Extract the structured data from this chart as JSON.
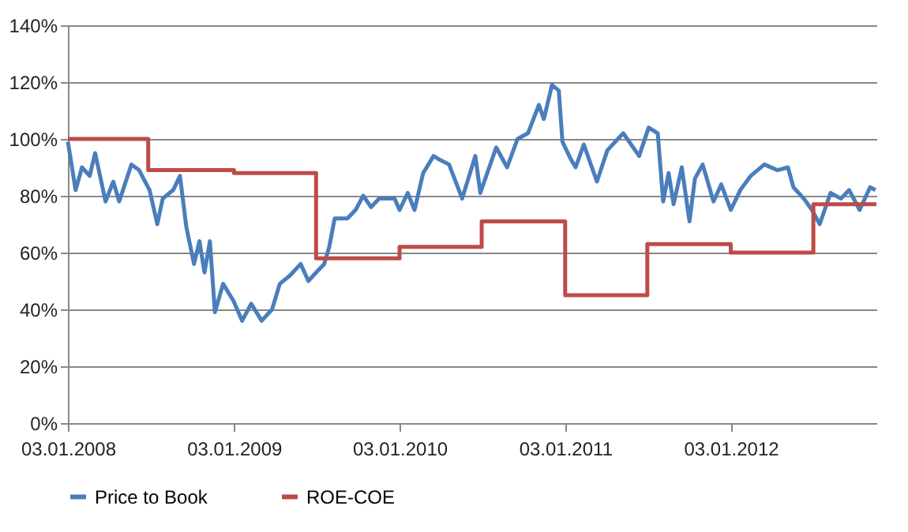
{
  "chart_data": {
    "type": "line",
    "series": [
      {
        "name": "Price to Book",
        "color": "#4a7ebb",
        "type": "line",
        "x": [
          "2008-01-03",
          "2008-01-20",
          "2008-02-03",
          "2008-02-20",
          "2008-03-03",
          "2008-03-26",
          "2008-04-12",
          "2008-04-25",
          "2008-05-22",
          "2008-06-08",
          "2008-07-01",
          "2008-07-18",
          "2008-07-30",
          "2008-08-22",
          "2008-09-06",
          "2008-09-20",
          "2008-10-07",
          "2008-10-19",
          "2008-10-30",
          "2008-11-11",
          "2008-11-22",
          "2008-12-10",
          "2009-01-02",
          "2009-01-21",
          "2009-02-10",
          "2009-03-05",
          "2009-03-28",
          "2009-04-14",
          "2009-05-07",
          "2009-05-30",
          "2009-06-16",
          "2009-07-03",
          "2009-07-21",
          "2009-08-01",
          "2009-08-13",
          "2009-09-10",
          "2009-09-28",
          "2009-10-15",
          "2009-11-01",
          "2009-11-19",
          "2009-12-23",
          "2010-01-03",
          "2010-01-21",
          "2010-02-05",
          "2010-02-24",
          "2010-03-19",
          "2010-03-29",
          "2010-04-22",
          "2010-05-09",
          "2010-05-21",
          "2010-06-19",
          "2010-06-30",
          "2010-08-04",
          "2010-08-28",
          "2010-09-20",
          "2010-10-13",
          "2010-11-06",
          "2010-11-17",
          "2010-12-05",
          "2010-12-20",
          "2010-12-28",
          "2011-01-15",
          "2011-01-26",
          "2011-02-13",
          "2011-03-14",
          "2011-04-06",
          "2011-05-11",
          "2011-06-15",
          "2011-07-06",
          "2011-07-26",
          "2011-08-07",
          "2011-08-19",
          "2011-08-30",
          "2011-09-17",
          "2011-10-04",
          "2011-10-16",
          "2011-11-02",
          "2011-11-26",
          "2011-12-13",
          "2012-01-03",
          "2012-01-24",
          "2012-02-16",
          "2012-03-17",
          "2012-04-15",
          "2012-05-08",
          "2012-05-20",
          "2012-06-12",
          "2012-06-30",
          "2012-07-17",
          "2012-08-10",
          "2012-09-02",
          "2012-09-20",
          "2012-10-13",
          "2012-11-05",
          "2012-11-17"
        ],
        "values": [
          99,
          82,
          90,
          87,
          95,
          78,
          85,
          78,
          91,
          89,
          82,
          70,
          79,
          82,
          87,
          69,
          56,
          64,
          53,
          64,
          39,
          49,
          43,
          36,
          42,
          36,
          40,
          49,
          52,
          56,
          50,
          53,
          56,
          62,
          72,
          72,
          75,
          80,
          76,
          79,
          79,
          75,
          81,
          75,
          88,
          94,
          93,
          91,
          84,
          79,
          94,
          81,
          97,
          90,
          100,
          102,
          112,
          107,
          119,
          117,
          99,
          93,
          90,
          98,
          85,
          96,
          102,
          94,
          104,
          102,
          78,
          88,
          77,
          90,
          71,
          86,
          91,
          78,
          84,
          75,
          82,
          87,
          91,
          89,
          90,
          83,
          79,
          75,
          70,
          81,
          79,
          82,
          75,
          83,
          82
        ]
      },
      {
        "name": "ROE-COE",
        "color": "#be4b48",
        "type": "step",
        "x": [
          "2008-01-03",
          "2008-06-28",
          "2009-01-03",
          "2009-07-03",
          "2010-01-03",
          "2010-07-03",
          "2011-01-03",
          "2011-07-03",
          "2012-01-03",
          "2012-07-03",
          "2012-11-19"
        ],
        "values": [
          100,
          89,
          88,
          58,
          62,
          71,
          45,
          63,
          60,
          77,
          77
        ]
      }
    ],
    "xlim": [
      "2008-01-03",
      "2012-11-19"
    ],
    "xticks": [
      {
        "value": "2008-01-03",
        "label": "03.01.2008"
      },
      {
        "value": "2009-01-03",
        "label": "03.01.2009"
      },
      {
        "value": "2010-01-03",
        "label": "03.01.2010"
      },
      {
        "value": "2011-01-03",
        "label": "03.01.2011"
      },
      {
        "value": "2012-01-03",
        "label": "03.01.2012"
      }
    ],
    "ylim": [
      0,
      140
    ],
    "yticks": [
      {
        "value": 0,
        "label": "0%"
      },
      {
        "value": 20,
        "label": "20%"
      },
      {
        "value": 40,
        "label": "40%"
      },
      {
        "value": 60,
        "label": "60%"
      },
      {
        "value": 80,
        "label": "80%"
      },
      {
        "value": 100,
        "label": "100%"
      },
      {
        "value": 120,
        "label": "120%"
      },
      {
        "value": 140,
        "label": "140%"
      }
    ],
    "grid": "y",
    "legend": "bottom"
  }
}
